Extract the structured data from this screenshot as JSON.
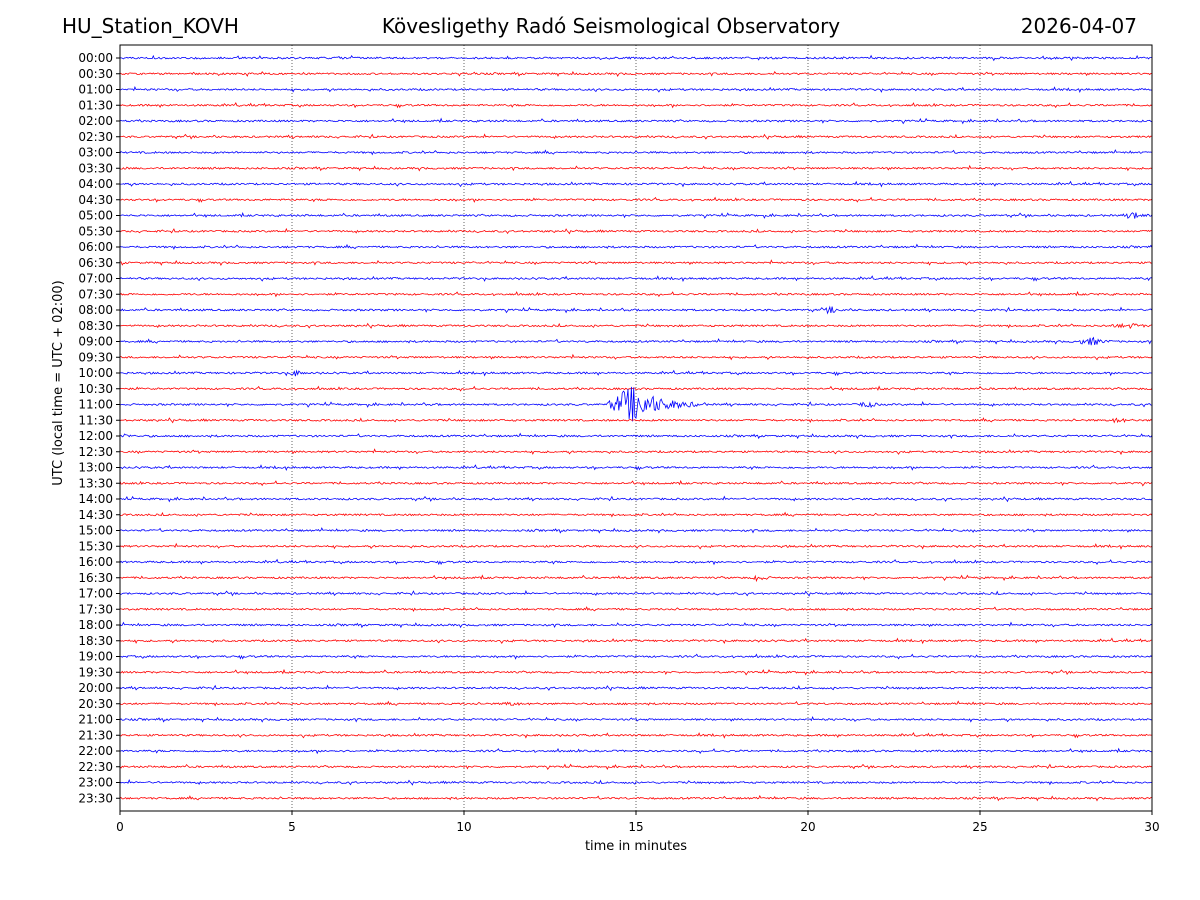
{
  "header": {
    "station": "HU_Station_KOVH",
    "observatory": "Kövesligethy Radó Seismological Observatory",
    "date": "2026-04-07"
  },
  "chart_data": {
    "type": "line",
    "title": "Kövesligethy Radó Seismological Observatory",
    "xlabel": "time in minutes",
    "ylabel": "UTC (local time = UTC + 02:00)",
    "xlim": [
      0,
      30
    ],
    "xticks": [
      0,
      5,
      10,
      15,
      20,
      25,
      30
    ],
    "grid": "vertical dotted lines at 5, 10, 15, 20, 25",
    "rows": [
      "00:00",
      "00:30",
      "01:00",
      "01:30",
      "02:00",
      "02:30",
      "03:00",
      "03:30",
      "04:00",
      "04:30",
      "05:00",
      "05:30",
      "06:00",
      "06:30",
      "07:00",
      "07:30",
      "08:00",
      "08:30",
      "09:00",
      "09:30",
      "10:00",
      "10:30",
      "11:00",
      "11:30",
      "12:00",
      "12:30",
      "13:00",
      "13:30",
      "14:00",
      "14:30",
      "15:00",
      "15:30",
      "16:00",
      "16:30",
      "17:00",
      "17:30",
      "18:00",
      "18:30",
      "19:00",
      "19:30",
      "20:00",
      "20:30",
      "21:00",
      "21:30",
      "22:00",
      "22:30",
      "23:00",
      "23:30"
    ],
    "colors": [
      "#0000ff",
      "#ff0000"
    ],
    "events": [
      {
        "row": "11:00",
        "start": 14.1,
        "peak": 14.9,
        "end": 17.0,
        "amplitude": 1.0
      },
      {
        "row": "11:00",
        "start": 21.5,
        "peak": 21.7,
        "end": 22.1,
        "amplitude": 0.25
      },
      {
        "row": "05:00",
        "start": 29.2,
        "peak": 29.5,
        "end": 30.0,
        "amplitude": 0.2
      },
      {
        "row": "09:00",
        "start": 27.7,
        "peak": 28.3,
        "end": 28.9,
        "amplitude": 0.2
      },
      {
        "row": "08:00",
        "start": 20.4,
        "peak": 20.7,
        "end": 21.2,
        "amplitude": 0.15
      },
      {
        "row": "10:00",
        "start": 4.9,
        "peak": 5.1,
        "end": 5.5,
        "amplitude": 0.15
      },
      {
        "row": "12:00",
        "start": 0.0,
        "peak": 0.1,
        "end": 0.4,
        "amplitude": 0.15
      },
      {
        "row": "16:30",
        "start": 18.4,
        "peak": 18.5,
        "end": 19.0,
        "amplitude": 0.2
      },
      {
        "row": "11:30",
        "start": 28.8,
        "peak": 29.0,
        "end": 29.5,
        "amplitude": 0.15
      },
      {
        "row": "20:30",
        "start": 11.1,
        "peak": 11.3,
        "end": 11.9,
        "amplitude": 0.12
      },
      {
        "row": "08:30",
        "start": 28.5,
        "peak": 29.5,
        "end": 30.0,
        "amplitude": 0.1
      }
    ]
  }
}
